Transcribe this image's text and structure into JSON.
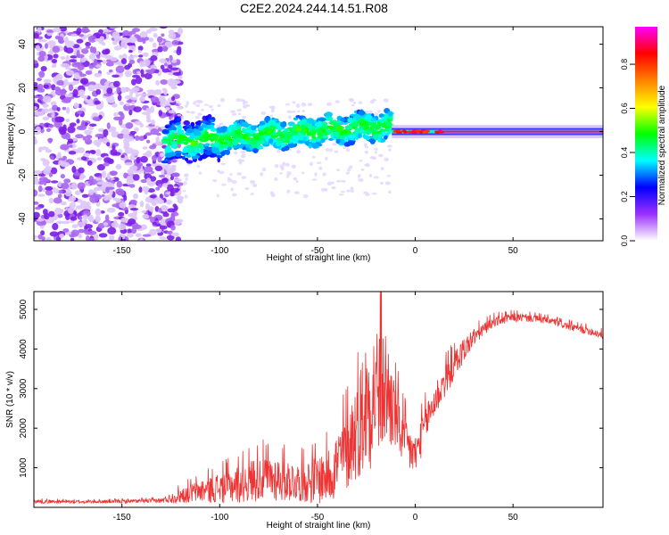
{
  "title": "C2E2.2024.244.14.51.R08",
  "chart_data": [
    {
      "type": "heatmap",
      "name": "spectrogram",
      "xlabel": "Height of straight line (km)",
      "ylabel": "Frequency (Hz)",
      "xlim": [
        -195,
        96
      ],
      "ylim": [
        -50,
        48
      ],
      "xticks": [
        -150,
        -100,
        -50,
        0,
        50
      ],
      "xtick_labels": [
        "-150",
        "-100",
        "-50",
        "0",
        "50"
      ],
      "yticks": [
        -40,
        -20,
        0,
        20,
        40
      ],
      "ytick_labels": [
        "-40",
        "-20",
        "0",
        "20",
        "40"
      ],
      "colorbar": {
        "label": "Normalized spectral amplitude",
        "range": [
          0,
          0.97
        ],
        "ticks": [
          0,
          0.2,
          0.4,
          0.6,
          0.8
        ],
        "tick_labels": [
          "0.0",
          "0.2",
          "0.4",
          "0.6",
          "0.8"
        ],
        "colormap": [
          "#ffffff",
          "#9b30ff",
          "#0000ff",
          "#00ffff",
          "#00ff00",
          "#ffff00",
          "#ff8000",
          "#ff0000",
          "#ff00ff"
        ]
      },
      "features": [
        {
          "description": "broadband noise",
          "x_range": [
            -195,
            -128
          ],
          "freq_range": [
            -50,
            48
          ],
          "amplitude": 0.15
        },
        {
          "description": "signal band",
          "x_range": [
            -128,
            -12
          ],
          "center_freq_start": -5,
          "center_freq_end": 3,
          "amplitude": 0.3
        },
        {
          "description": "strong line",
          "x_range": [
            -12,
            96
          ],
          "center_freq": 0,
          "amplitude": 0.95
        }
      ]
    },
    {
      "type": "line",
      "name": "snr",
      "xlabel": "Height of straight line (km)",
      "ylabel": "SNR (10 * v/v)",
      "xlim": [
        -195,
        96
      ],
      "ylim": [
        0,
        5450
      ],
      "xticks": [
        -150,
        -100,
        -50,
        0,
        50
      ],
      "xtick_labels": [
        "-150",
        "-100",
        "-50",
        "0",
        "50"
      ],
      "yticks": [
        1000,
        2000,
        3000,
        4000,
        5000
      ],
      "ytick_labels": [
        "1000",
        "2000",
        "3000",
        "4000",
        "5000"
      ],
      "series": [
        {
          "name": "SNR",
          "color": "#ee3333",
          "x": [
            -195,
            -170,
            -150,
            -130,
            -120,
            -110,
            -100,
            -90,
            -80,
            -70,
            -60,
            -50,
            -45,
            -40,
            -35,
            -30,
            -25,
            -20,
            -15,
            -10,
            -5,
            0,
            5,
            10,
            15,
            20,
            25,
            30,
            35,
            40,
            50,
            60,
            70,
            80,
            90,
            96
          ],
          "y": [
            150,
            140,
            150,
            170,
            300,
            420,
            500,
            600,
            760,
            740,
            650,
            720,
            800,
            1100,
            1500,
            2000,
            2600,
            3000,
            3000,
            2300,
            1600,
            1300,
            2100,
            2700,
            3200,
            3600,
            4000,
            4300,
            4500,
            4700,
            4800,
            4780,
            4700,
            4550,
            4450,
            4350
          ],
          "noise_amplitude": [
            50,
            40,
            45,
            60,
            200,
            300,
            400,
            500,
            600,
            600,
            500,
            650,
            700,
            900,
            1100,
            1300,
            1800,
            1800,
            1600,
            900,
            700,
            550,
            500,
            500,
            450,
            380,
            320,
            240,
            170,
            140,
            120,
            100,
            100,
            100,
            110,
            110
          ]
        }
      ]
    }
  ]
}
